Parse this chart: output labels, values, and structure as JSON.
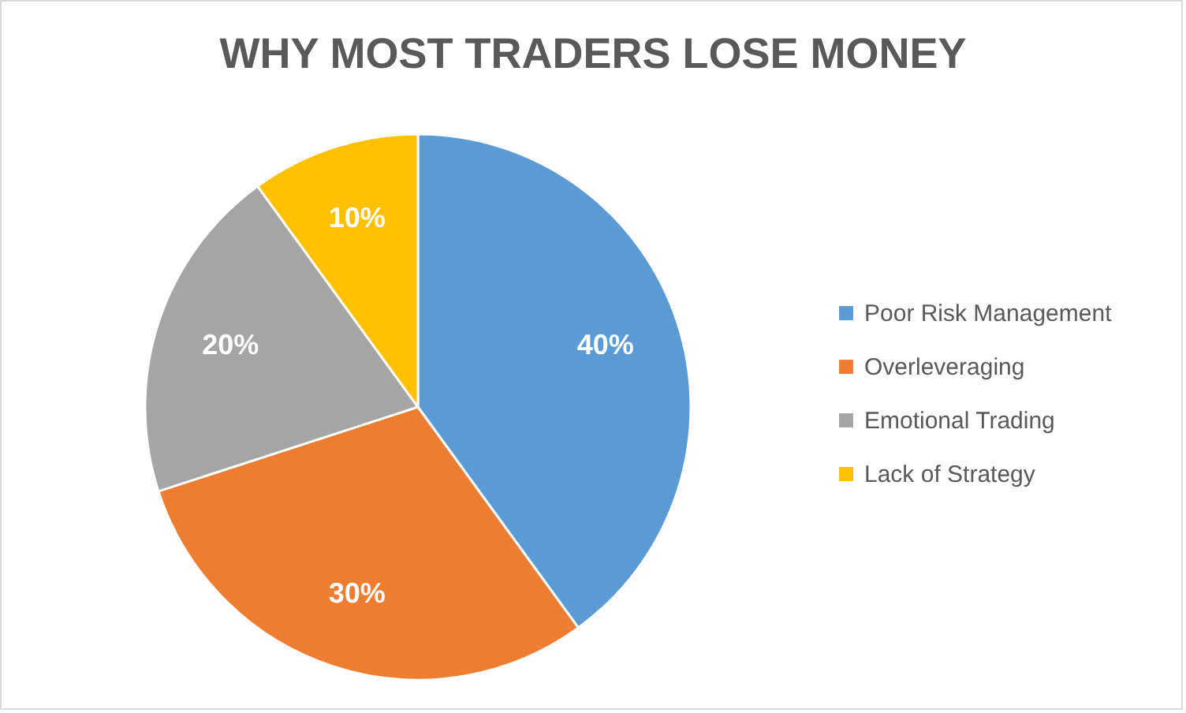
{
  "chart_data": {
    "type": "pie",
    "title": "WHY MOST TRADERS LOSE MONEY",
    "categories": [
      "Poor Risk Management",
      "Overleveraging",
      "Emotional Trading",
      "Lack of Strategy"
    ],
    "values": [
      40,
      30,
      20,
      10
    ],
    "value_labels": [
      "40%",
      "30%",
      "20%",
      "10%"
    ],
    "colors": [
      "#5b9bd5",
      "#ed7d31",
      "#a5a5a5",
      "#ffc000"
    ],
    "legend": "right"
  }
}
